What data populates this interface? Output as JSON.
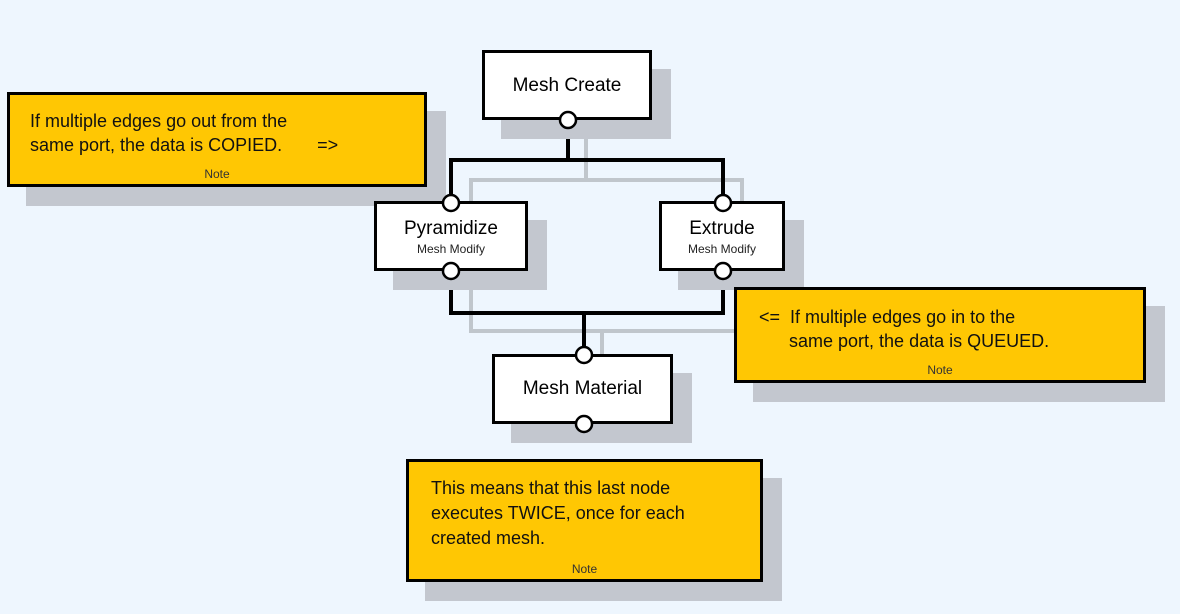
{
  "colors": {
    "background": "#eef6fe",
    "note_fill": "#ffc703",
    "node_fill": "#ffffff",
    "shadow": "#c3c7cf",
    "edge": "#000000",
    "edge_shadow": "#c0c6cc"
  },
  "nodes": {
    "mesh_create": {
      "title": "Mesh Create"
    },
    "pyramidize": {
      "title": "Pyramidize",
      "subtitle": "Mesh Modify"
    },
    "extrude": {
      "title": "Extrude",
      "subtitle": "Mesh Modify"
    },
    "mesh_material": {
      "title": "Mesh Material"
    }
  },
  "notes": {
    "copied": {
      "line1": "If multiple edges go out from the",
      "line2": "same port, the data is COPIED.       =>",
      "label": "Note"
    },
    "queued": {
      "line1": "<=  If multiple edges go in to the",
      "line2": "      same port, the data is QUEUED.",
      "label": "Note"
    },
    "twice": {
      "line1": "This means that this last node",
      "line2": "executes TWICE, once for each",
      "line3": "created mesh.",
      "label": "Note"
    }
  }
}
